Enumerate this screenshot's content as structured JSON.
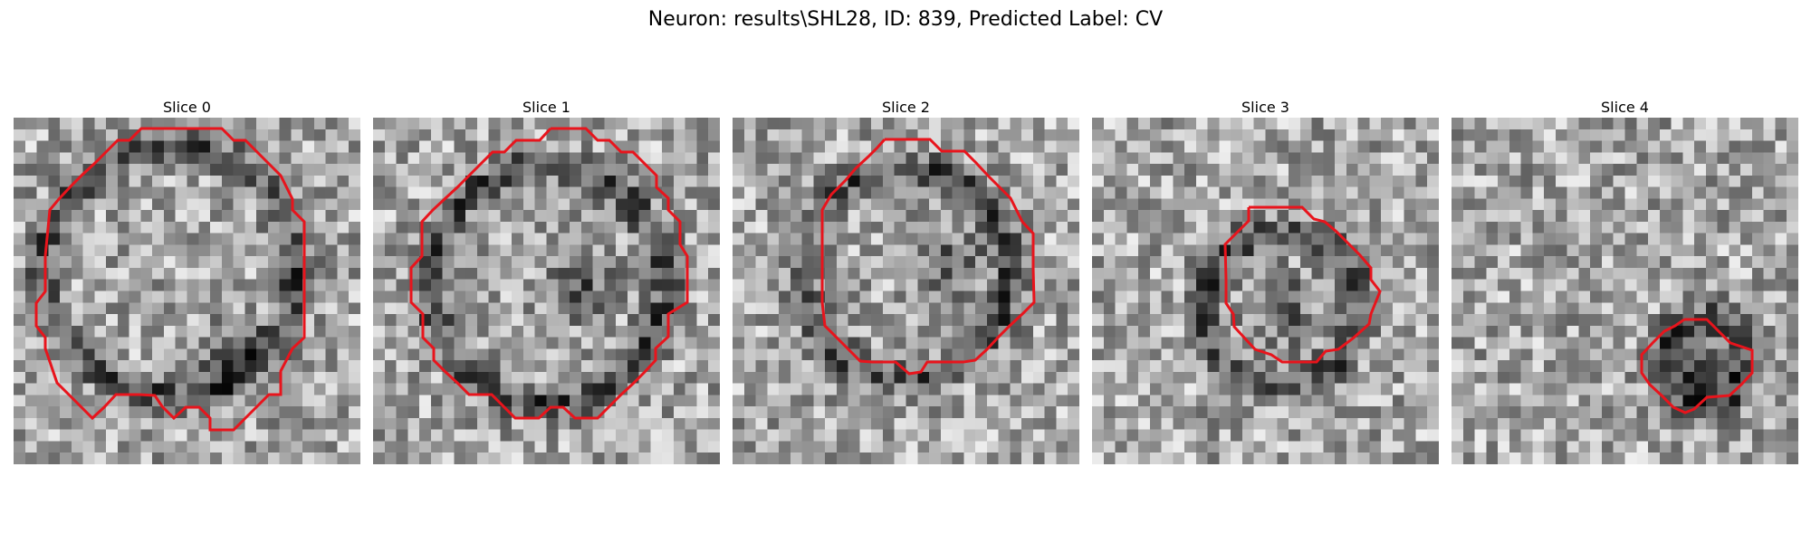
{
  "figure": {
    "title": "Neuron: results\\SHL28, ID: 839, Predicted Label: CV",
    "contour_color": "#e8141c"
  },
  "slices": [
    {
      "label": "Slice 0",
      "seed": 11,
      "ring_center": [
        0.45,
        0.44
      ],
      "ring_radius": 0.36,
      "dark_spot": [
        0.62,
        0.68
      ]
    },
    {
      "label": "Slice 1",
      "seed": 23,
      "ring_center": [
        0.5,
        0.48
      ],
      "ring_radius": 0.34,
      "dark_spot": [
        0.6,
        0.5
      ]
    },
    {
      "label": "Slice 2",
      "seed": 37,
      "ring_center": [
        0.5,
        0.45
      ],
      "ring_radius": 0.3,
      "dark_spot": [
        0.62,
        0.42
      ]
    },
    {
      "label": "Slice 3",
      "seed": 41,
      "ring_center": [
        0.55,
        0.55
      ],
      "ring_radius": 0.22,
      "dark_spot": [
        0.55,
        0.55
      ]
    },
    {
      "label": "Slice 4",
      "seed": 59,
      "ring_center": [
        0.73,
        0.7
      ],
      "ring_radius": 0.12,
      "dark_spot": [
        0.73,
        0.73
      ]
    }
  ]
}
